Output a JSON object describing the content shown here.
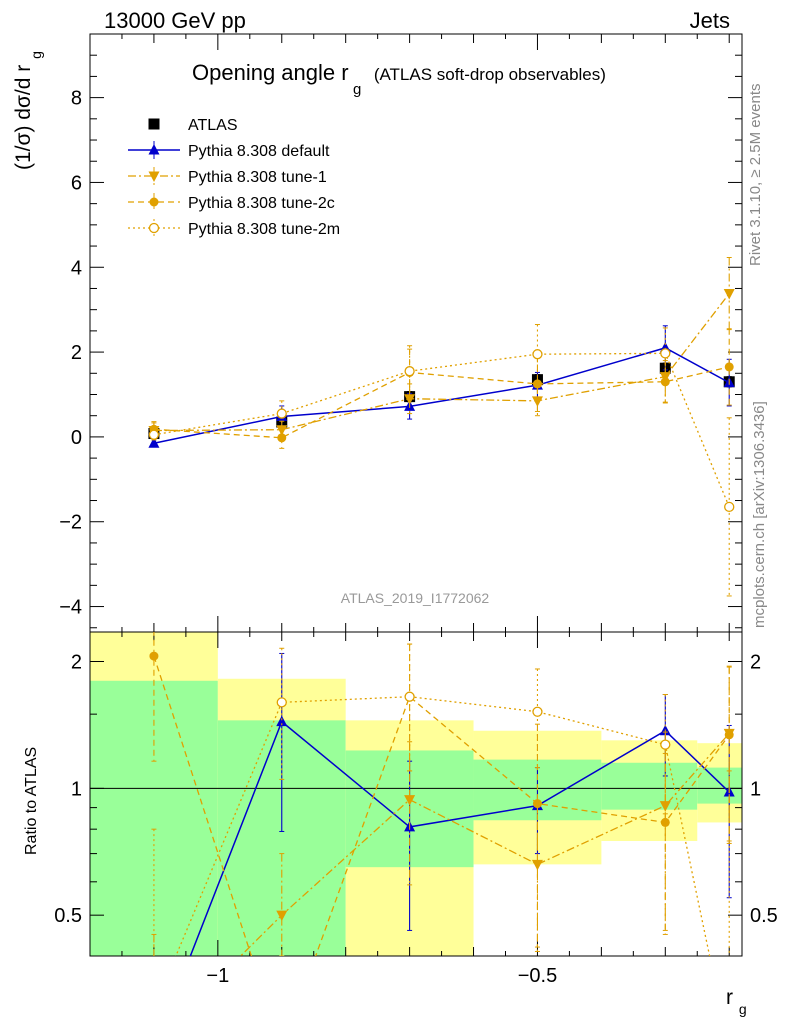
{
  "header": {
    "left": "13000 GeV pp",
    "right": "Jets"
  },
  "title": {
    "main": "Opening angle r",
    "sub": "g",
    "detail": "(ATLAS soft-drop observables)"
  },
  "ylabel": {
    "text": "(1/σ) dσ/d r",
    "sub": "g"
  },
  "ratio_ylabel": "Ratio to ATLAS",
  "xlabel": {
    "text": "r",
    "sub": "g"
  },
  "side_labels": {
    "rivet": "Rivet 3.1.10, ≥ 2.5M events",
    "mcplots": "mcplots.cern.ch [arXiv:1306.3436]"
  },
  "analysis_id": "ATLAS_2019_I1772062",
  "colors": {
    "atlas": "#000000",
    "default": "#0000cc",
    "tune": "#e0a000",
    "band_inner": "#99ff99",
    "band_outer": "#ffff99"
  },
  "chart_data": [
    {
      "type": "line",
      "panel": "main",
      "xlim": [
        -1.2,
        -0.18
      ],
      "ylim": [
        -4.6,
        9.5
      ],
      "x_ticks": [
        -1,
        -0.5
      ],
      "x_tick_labels": [
        "−1",
        "−0.5"
      ],
      "y_ticks": [
        -4,
        -2,
        0,
        2,
        4,
        6,
        8
      ],
      "y_tick_labels": [
        "−4",
        "−2",
        "0",
        "2",
        "4",
        "6",
        "8"
      ],
      "legend_placement": "top-left",
      "x": [
        -1.1,
        -0.9,
        -0.7,
        -0.5,
        -0.3,
        -0.2
      ],
      "bin_edges": [
        -1.2,
        -1.0,
        -0.8,
        -0.6,
        -0.4,
        -0.25,
        -0.18
      ],
      "series": [
        {
          "name": "ATLAS",
          "style": "data",
          "values": [
            0.08,
            0.35,
            0.95,
            1.35,
            1.62,
            1.3
          ],
          "errors": [
            0.08,
            0.1,
            0.12,
            0.12,
            0.12,
            0.12
          ]
        },
        {
          "name": "Pythia 8.308 default",
          "style": "default",
          "values": [
            -0.15,
            0.48,
            0.72,
            1.22,
            2.1,
            1.28
          ],
          "errors": [
            0.08,
            0.25,
            0.3,
            0.3,
            0.52,
            0.55
          ]
        },
        {
          "name": "Pythia 8.308 tune-1",
          "style": "tune1",
          "values": [
            0.15,
            0.17,
            0.9,
            0.85,
            1.42,
            3.38
          ],
          "errors": [
            0.18,
            0.2,
            0.35,
            0.35,
            0.6,
            0.85
          ]
        },
        {
          "name": "Pythia 8.308 tune-2c",
          "style": "tune2c",
          "values": [
            0.18,
            -0.02,
            1.52,
            1.25,
            1.3,
            1.65
          ],
          "errors": [
            0.18,
            0.25,
            0.55,
            0.65,
            0.5,
            0.9
          ]
        },
        {
          "name": "Pythia 8.308 tune-2m",
          "style": "tune2m",
          "values": [
            0.05,
            0.55,
            1.55,
            1.95,
            1.97,
            -1.65
          ],
          "errors": [
            0.12,
            0.3,
            0.6,
            0.7,
            0.6,
            2.1
          ]
        }
      ]
    },
    {
      "type": "line",
      "panel": "ratio",
      "xlim": [
        -1.2,
        -0.18
      ],
      "ylim": [
        0.4,
        2.35
      ],
      "log_y": true,
      "y_ticks": [
        0.5,
        1,
        2
      ],
      "y_tick_labels": [
        "0.5",
        "1",
        "2"
      ],
      "bands": {
        "bin_edges": [
          -1.2,
          -1.0,
          -0.8,
          -0.6,
          -0.4,
          -0.25,
          -0.18
        ],
        "inner_low": [
          0.2,
          0.3,
          0.65,
          0.84,
          0.89,
          0.92
        ],
        "inner_high": [
          1.8,
          1.45,
          1.23,
          1.17,
          1.15,
          1.12
        ],
        "outer_low": [
          0.2,
          0.2,
          0.4,
          0.66,
          0.75,
          0.83
        ],
        "outer_high": [
          2.35,
          1.82,
          1.45,
          1.37,
          1.3,
          1.28
        ]
      },
      "x": [
        -1.1,
        -0.9,
        -0.7,
        -0.5,
        -0.3,
        -0.2
      ],
      "series": [
        {
          "name": "Pythia 8.308 default",
          "style": "default",
          "values": [
            0.2,
            1.44,
            0.81,
            0.91,
            1.37,
            0.98
          ],
          "errors": [
            0.1,
            0.65,
            0.35,
            0.21,
            0.3,
            0.43
          ]
        },
        {
          "name": "Pythia 8.308 tune-1",
          "style": "tune1",
          "values": [
            0.25,
            0.5,
            0.94,
            0.66,
            0.91,
            1.35
          ],
          "errors": [
            0.2,
            0.2,
            0.35,
            0.25,
            0.45,
            0.6
          ]
        },
        {
          "name": "Pythia 8.308 tune-2c",
          "style": "tune2c",
          "values": [
            2.06,
            0.2,
            1.65,
            0.92,
            0.83,
            1.34
          ],
          "errors": [
            0.9,
            0.2,
            0.55,
            0.5,
            0.38,
            0.6
          ]
        },
        {
          "name": "Pythia 8.308 tune-2m",
          "style": "tune2m",
          "values": [
            0.3,
            1.6,
            1.65,
            1.52,
            1.27,
            0.1
          ],
          "errors": [
            0.5,
            0.55,
            0.55,
            0.4,
            0.4,
            1.0
          ]
        }
      ]
    }
  ]
}
